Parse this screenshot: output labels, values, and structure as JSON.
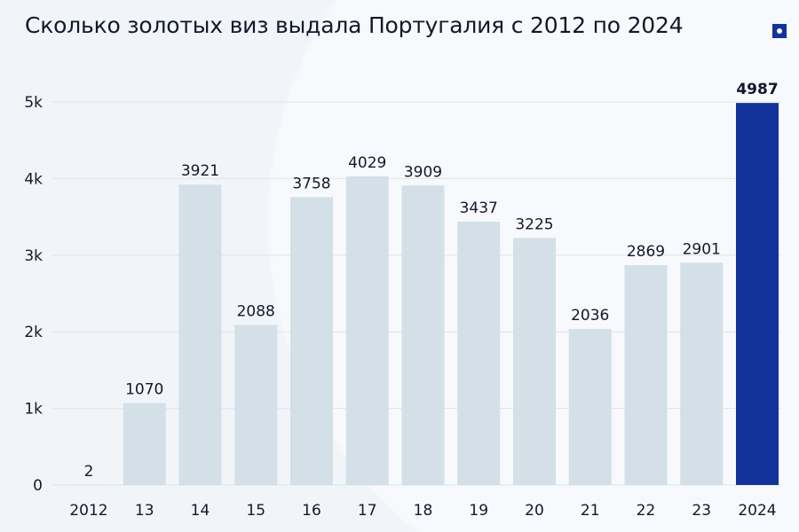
{
  "title": "Сколько золотых виз выдала Португалия с 2012 по 2024",
  "logo_icon": "square-dot-logo",
  "colors": {
    "bar": "#d3e0e7",
    "highlight": "#13329a",
    "text": "#14182a",
    "grid": "#dde5ec"
  },
  "chart_data": {
    "type": "bar",
    "title": "Сколько золотых виз выдала Португалия с 2012 по 2024",
    "categories": [
      "2012",
      "13",
      "14",
      "15",
      "16",
      "17",
      "18",
      "19",
      "20",
      "21",
      "22",
      "23",
      "2024"
    ],
    "values": [
      2,
      1070,
      3921,
      2088,
      3758,
      4029,
      3909,
      3437,
      3225,
      2036,
      2869,
      2901,
      4987
    ],
    "highlight_index": 12,
    "yticks": [
      0,
      1000,
      2000,
      3000,
      4000,
      5000
    ],
    "ytick_labels": [
      "0",
      "1k",
      "2k",
      "3k",
      "4k",
      "5k"
    ],
    "ylim": [
      0,
      5000
    ],
    "grid": true
  }
}
